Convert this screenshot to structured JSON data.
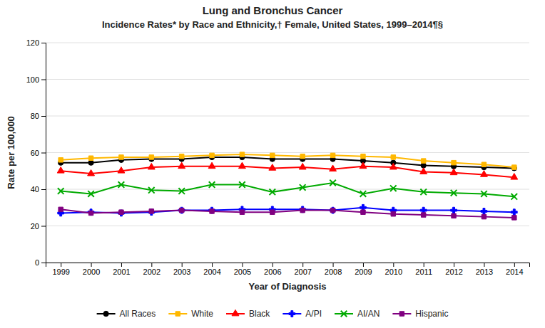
{
  "chart_data": {
    "type": "line",
    "title": "Lung and Bronchus Cancer",
    "subtitle": "Incidence Rates* by Race and Ethnicity,† Female, United States, 1999–2014¶§",
    "xlabel": "Year of Diagnosis",
    "ylabel": "Rate per 100,000",
    "x": [
      1999,
      2000,
      2001,
      2002,
      2003,
      2004,
      2005,
      2006,
      2007,
      2008,
      2009,
      2010,
      2011,
      2012,
      2013,
      2014
    ],
    "xlim": [
      1998.5,
      2014.5
    ],
    "xticks": [
      1999,
      2000,
      2001,
      2002,
      2003,
      2004,
      2005,
      2006,
      2007,
      2008,
      2009,
      2010,
      2011,
      2012,
      2013,
      2014
    ],
    "ylim": [
      0,
      120
    ],
    "yticks": [
      0,
      20,
      40,
      60,
      80,
      100,
      120
    ],
    "grid": "y",
    "legend": "bottom",
    "series": [
      {
        "name": "All Races",
        "color": "#000000",
        "marker": "circle",
        "values": [
          54.5,
          54.5,
          56.0,
          56.5,
          56.5,
          57.5,
          57.5,
          56.5,
          56.5,
          56.5,
          55.5,
          54.5,
          53.0,
          52.5,
          52.0,
          51.5
        ]
      },
      {
        "name": "White",
        "color": "#FFB800",
        "marker": "square",
        "values": [
          56.0,
          57.0,
          57.5,
          57.5,
          58.0,
          58.5,
          59.0,
          58.5,
          58.0,
          58.5,
          58.0,
          57.5,
          55.5,
          54.5,
          53.5,
          52.0
        ]
      },
      {
        "name": "Black",
        "color": "#FF0000",
        "marker": "triangle",
        "values": [
          50.0,
          48.5,
          50.0,
          52.0,
          52.5,
          52.5,
          52.5,
          51.5,
          52.0,
          51.0,
          52.5,
          52.0,
          49.5,
          49.0,
          48.0,
          46.5
        ]
      },
      {
        "name": "A/PI",
        "color": "#0000FF",
        "marker": "plus",
        "values": [
          27.0,
          27.5,
          27.0,
          27.5,
          28.5,
          28.5,
          29.0,
          29.0,
          29.0,
          28.5,
          30.0,
          28.5,
          28.5,
          28.5,
          28.0,
          27.5
        ]
      },
      {
        "name": "AI/AN",
        "color": "#00AA00",
        "marker": "x",
        "values": [
          39.0,
          37.5,
          42.5,
          39.5,
          39.0,
          42.5,
          42.5,
          38.5,
          41.0,
          43.5,
          37.5,
          40.5,
          38.5,
          38.0,
          37.5,
          36.0
        ]
      },
      {
        "name": "Hispanic",
        "color": "#800080",
        "marker": "square",
        "values": [
          29.0,
          27.0,
          27.5,
          28.0,
          28.5,
          28.0,
          27.5,
          27.5,
          28.5,
          28.5,
          27.5,
          26.5,
          26.0,
          25.5,
          25.0,
          24.5
        ]
      }
    ]
  }
}
